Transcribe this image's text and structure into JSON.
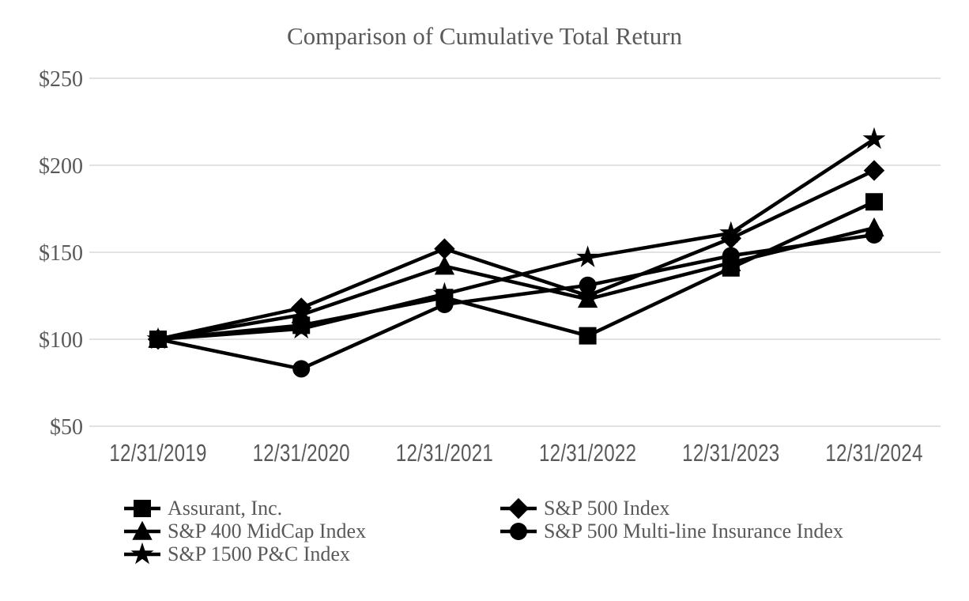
{
  "chart_data": {
    "type": "line",
    "title": "Comparison of Cumulative Total Return",
    "x_categories": [
      "12/31/2019",
      "12/31/2020",
      "12/31/2021",
      "12/31/2022",
      "12/31/2023",
      "12/31/2024"
    ],
    "y_axis": {
      "ticks": [
        50,
        100,
        150,
        200,
        250
      ],
      "tick_labels": [
        "$50",
        "$100",
        "$150",
        "$200",
        "$250"
      ],
      "ylim": [
        50,
        250
      ]
    },
    "grid": true,
    "legend_position": "bottom",
    "series": [
      {
        "name": "Assurant, Inc.",
        "marker": "square",
        "values": [
          100,
          108,
          124,
          102,
          141,
          179
        ]
      },
      {
        "name": "S&P 500 Index",
        "marker": "diamond",
        "values": [
          100,
          118,
          152,
          125,
          158,
          197
        ]
      },
      {
        "name": "S&P 400 MidCap Index",
        "marker": "triangle",
        "values": [
          100,
          114,
          142,
          123,
          144,
          164
        ]
      },
      {
        "name": "S&P 500 Multi-line Insurance Index",
        "marker": "circle",
        "values": [
          100,
          83,
          120,
          131,
          148,
          160
        ]
      },
      {
        "name": "S&P 1500 P&C Index",
        "marker": "star",
        "values": [
          100,
          106,
          126,
          147,
          161,
          215
        ]
      }
    ],
    "legend_columns": [
      [
        0,
        2,
        4
      ],
      [
        1,
        3
      ]
    ],
    "colors": {
      "line": "#000000",
      "grid": "#d9d9d9",
      "text": "#595959",
      "background": "#ffffff"
    }
  }
}
